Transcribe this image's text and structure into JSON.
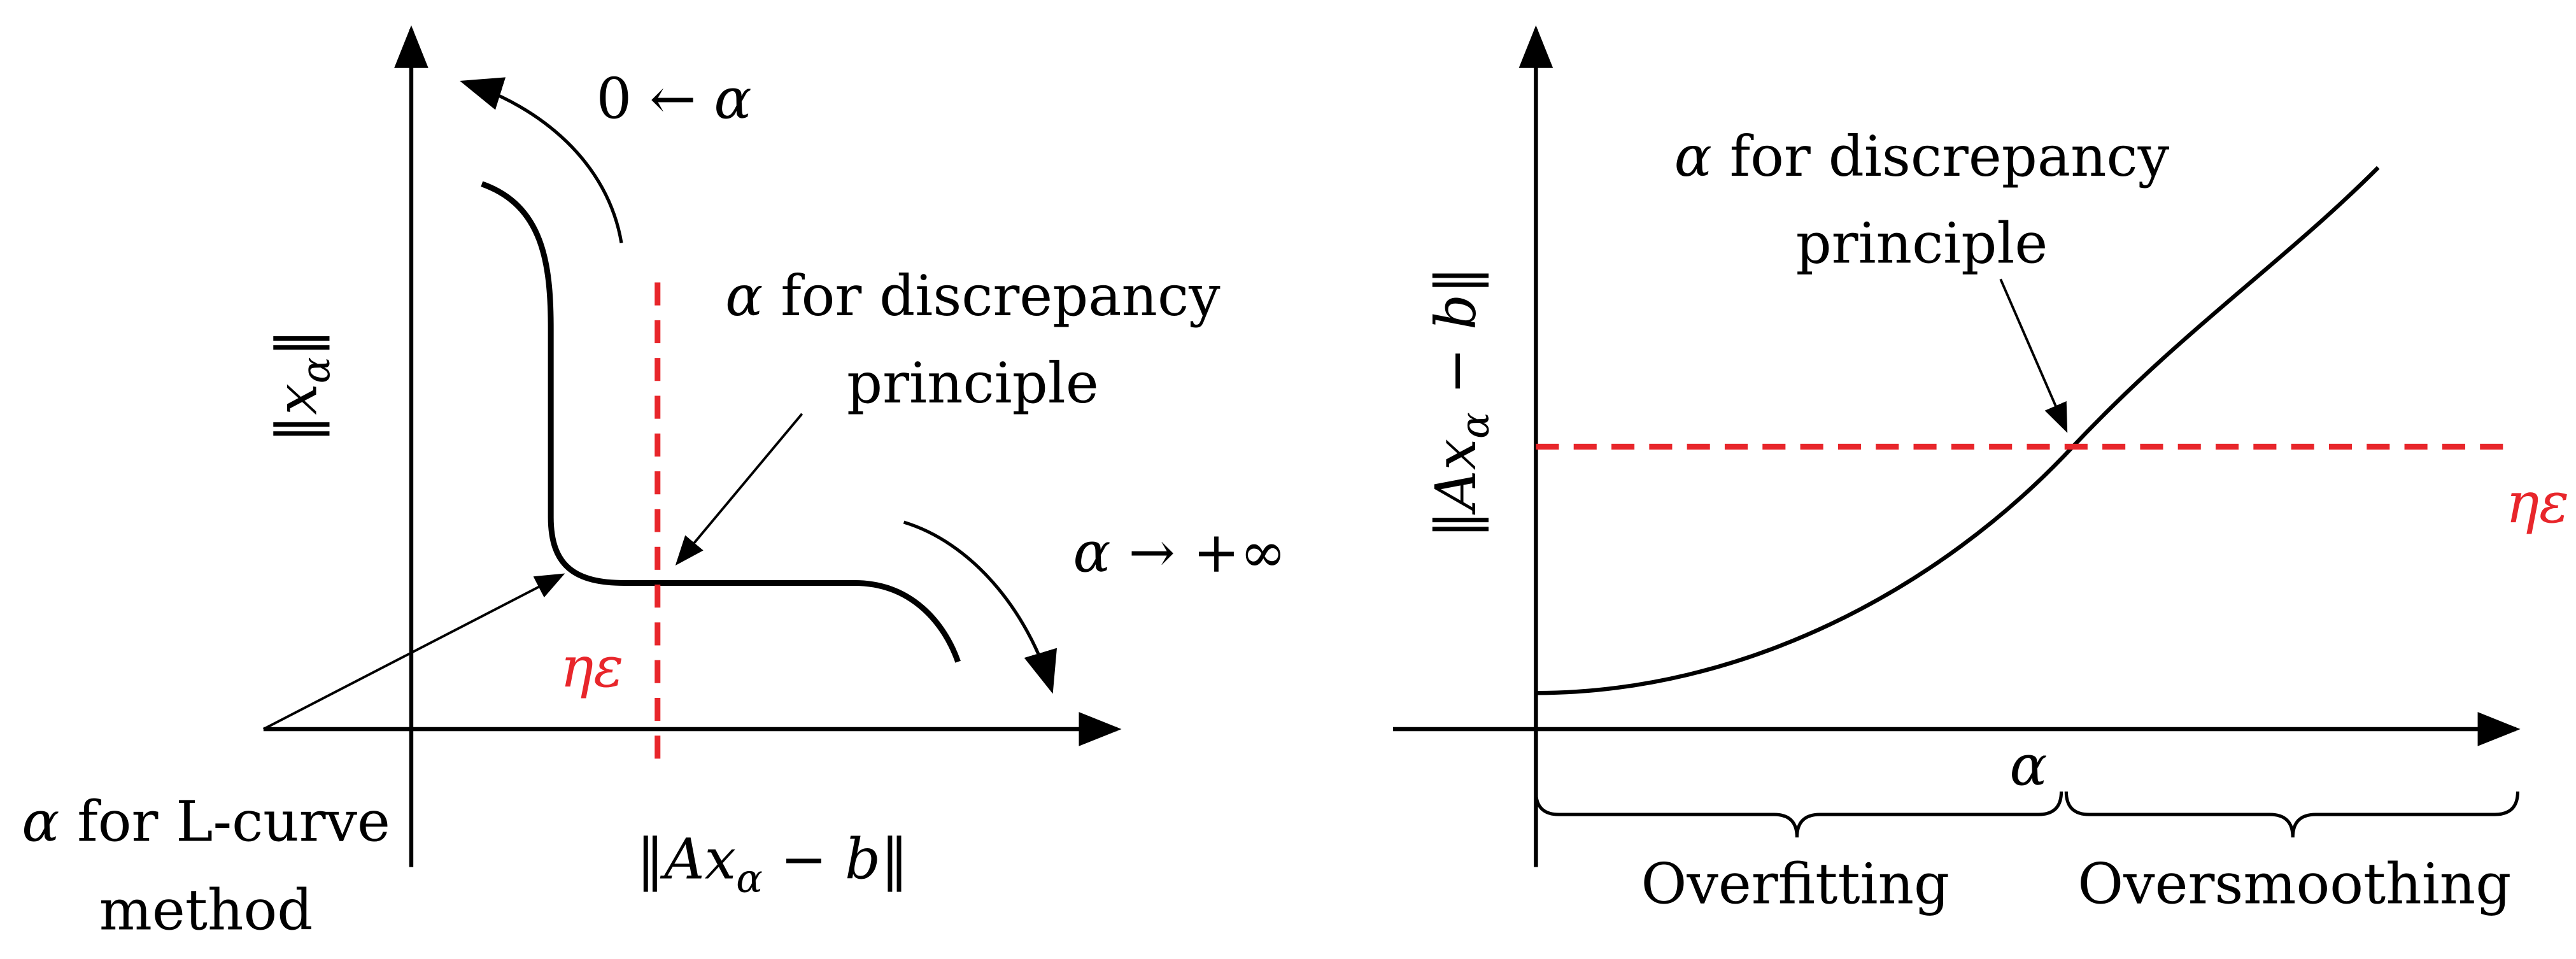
{
  "left_panel": {
    "y_axis_label": {
      "open": "‖",
      "var": "x",
      "sub": "α",
      "close": "‖"
    },
    "top_arrow_label": {
      "text": "0 ← ",
      "var": "α"
    },
    "discrepancy_label": {
      "var": "α",
      "line1": " for discrepancy",
      "line2": "principle"
    },
    "bottom_arrow_label": {
      "var": "α",
      "text": " → +∞"
    },
    "noise_label": "ηε",
    "lcurve_label": {
      "var": "α",
      "line1": " for L-curve",
      "line2": "method"
    },
    "x_axis_label": {
      "open": "‖",
      "var1": "Ax",
      "sub": "α",
      "rest": " − ",
      "var2": "b",
      "close": "‖"
    }
  },
  "right_panel": {
    "discrepancy_label": {
      "var": "α",
      "line1": " for discrepancy",
      "line2": "principle"
    },
    "y_axis_label": {
      "open": "‖",
      "var1": "Ax",
      "sub": "α",
      "rest": " − ",
      "var2": "b",
      "close": "‖"
    },
    "noise_label": "ηε",
    "x_axis_label": "α",
    "region_left": "Overfitting",
    "region_right": "Oversmoothing"
  }
}
